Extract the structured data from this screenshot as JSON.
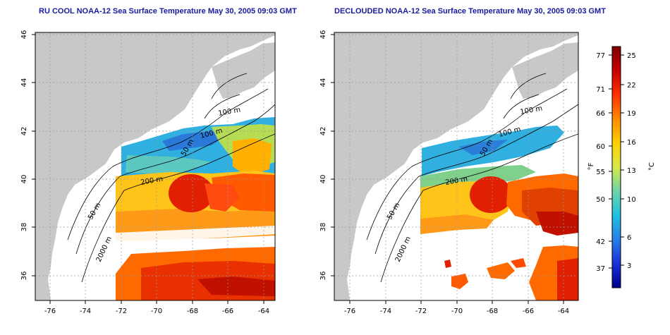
{
  "panels": [
    {
      "id": "raw",
      "title": "RU COOL NOAA-12 Sea Surface Temperature May 30, 2005 09:03 GMT",
      "iso_labels": [
        "100 m",
        "100 m",
        "50 m",
        "200 m",
        "50 m",
        "2000 m"
      ]
    },
    {
      "id": "declouded",
      "title": "DECLOUDED NOAA-12 Sea Surface Temperature May 30, 2005 09:03 GMT",
      "iso_labels": [
        "100 m",
        "100 m",
        "50 m",
        "200 m",
        "50 m",
        "2000 m"
      ]
    }
  ],
  "axes": {
    "x_ticks": [
      "-76",
      "-74",
      "-72",
      "-70",
      "-68",
      "-66",
      "-64"
    ],
    "y_ticks": [
      "46",
      "44",
      "42",
      "40",
      "38",
      "36"
    ]
  },
  "colorbar": {
    "f_ticks": [
      "77",
      "71",
      "66",
      "60",
      "55",
      "50",
      "42",
      "37"
    ],
    "c_ticks": [
      "25",
      "22",
      "19",
      "16",
      "13",
      "10",
      "6",
      "3"
    ],
    "f_label": "°F",
    "c_label": "°C",
    "colors": [
      "#7a0000",
      "#c80000",
      "#ff3000",
      "#ff8a00",
      "#ffd000",
      "#d8e84a",
      "#6cd4a8",
      "#20c0e0",
      "#2880e8",
      "#1830d8",
      "#00008a"
    ]
  }
}
